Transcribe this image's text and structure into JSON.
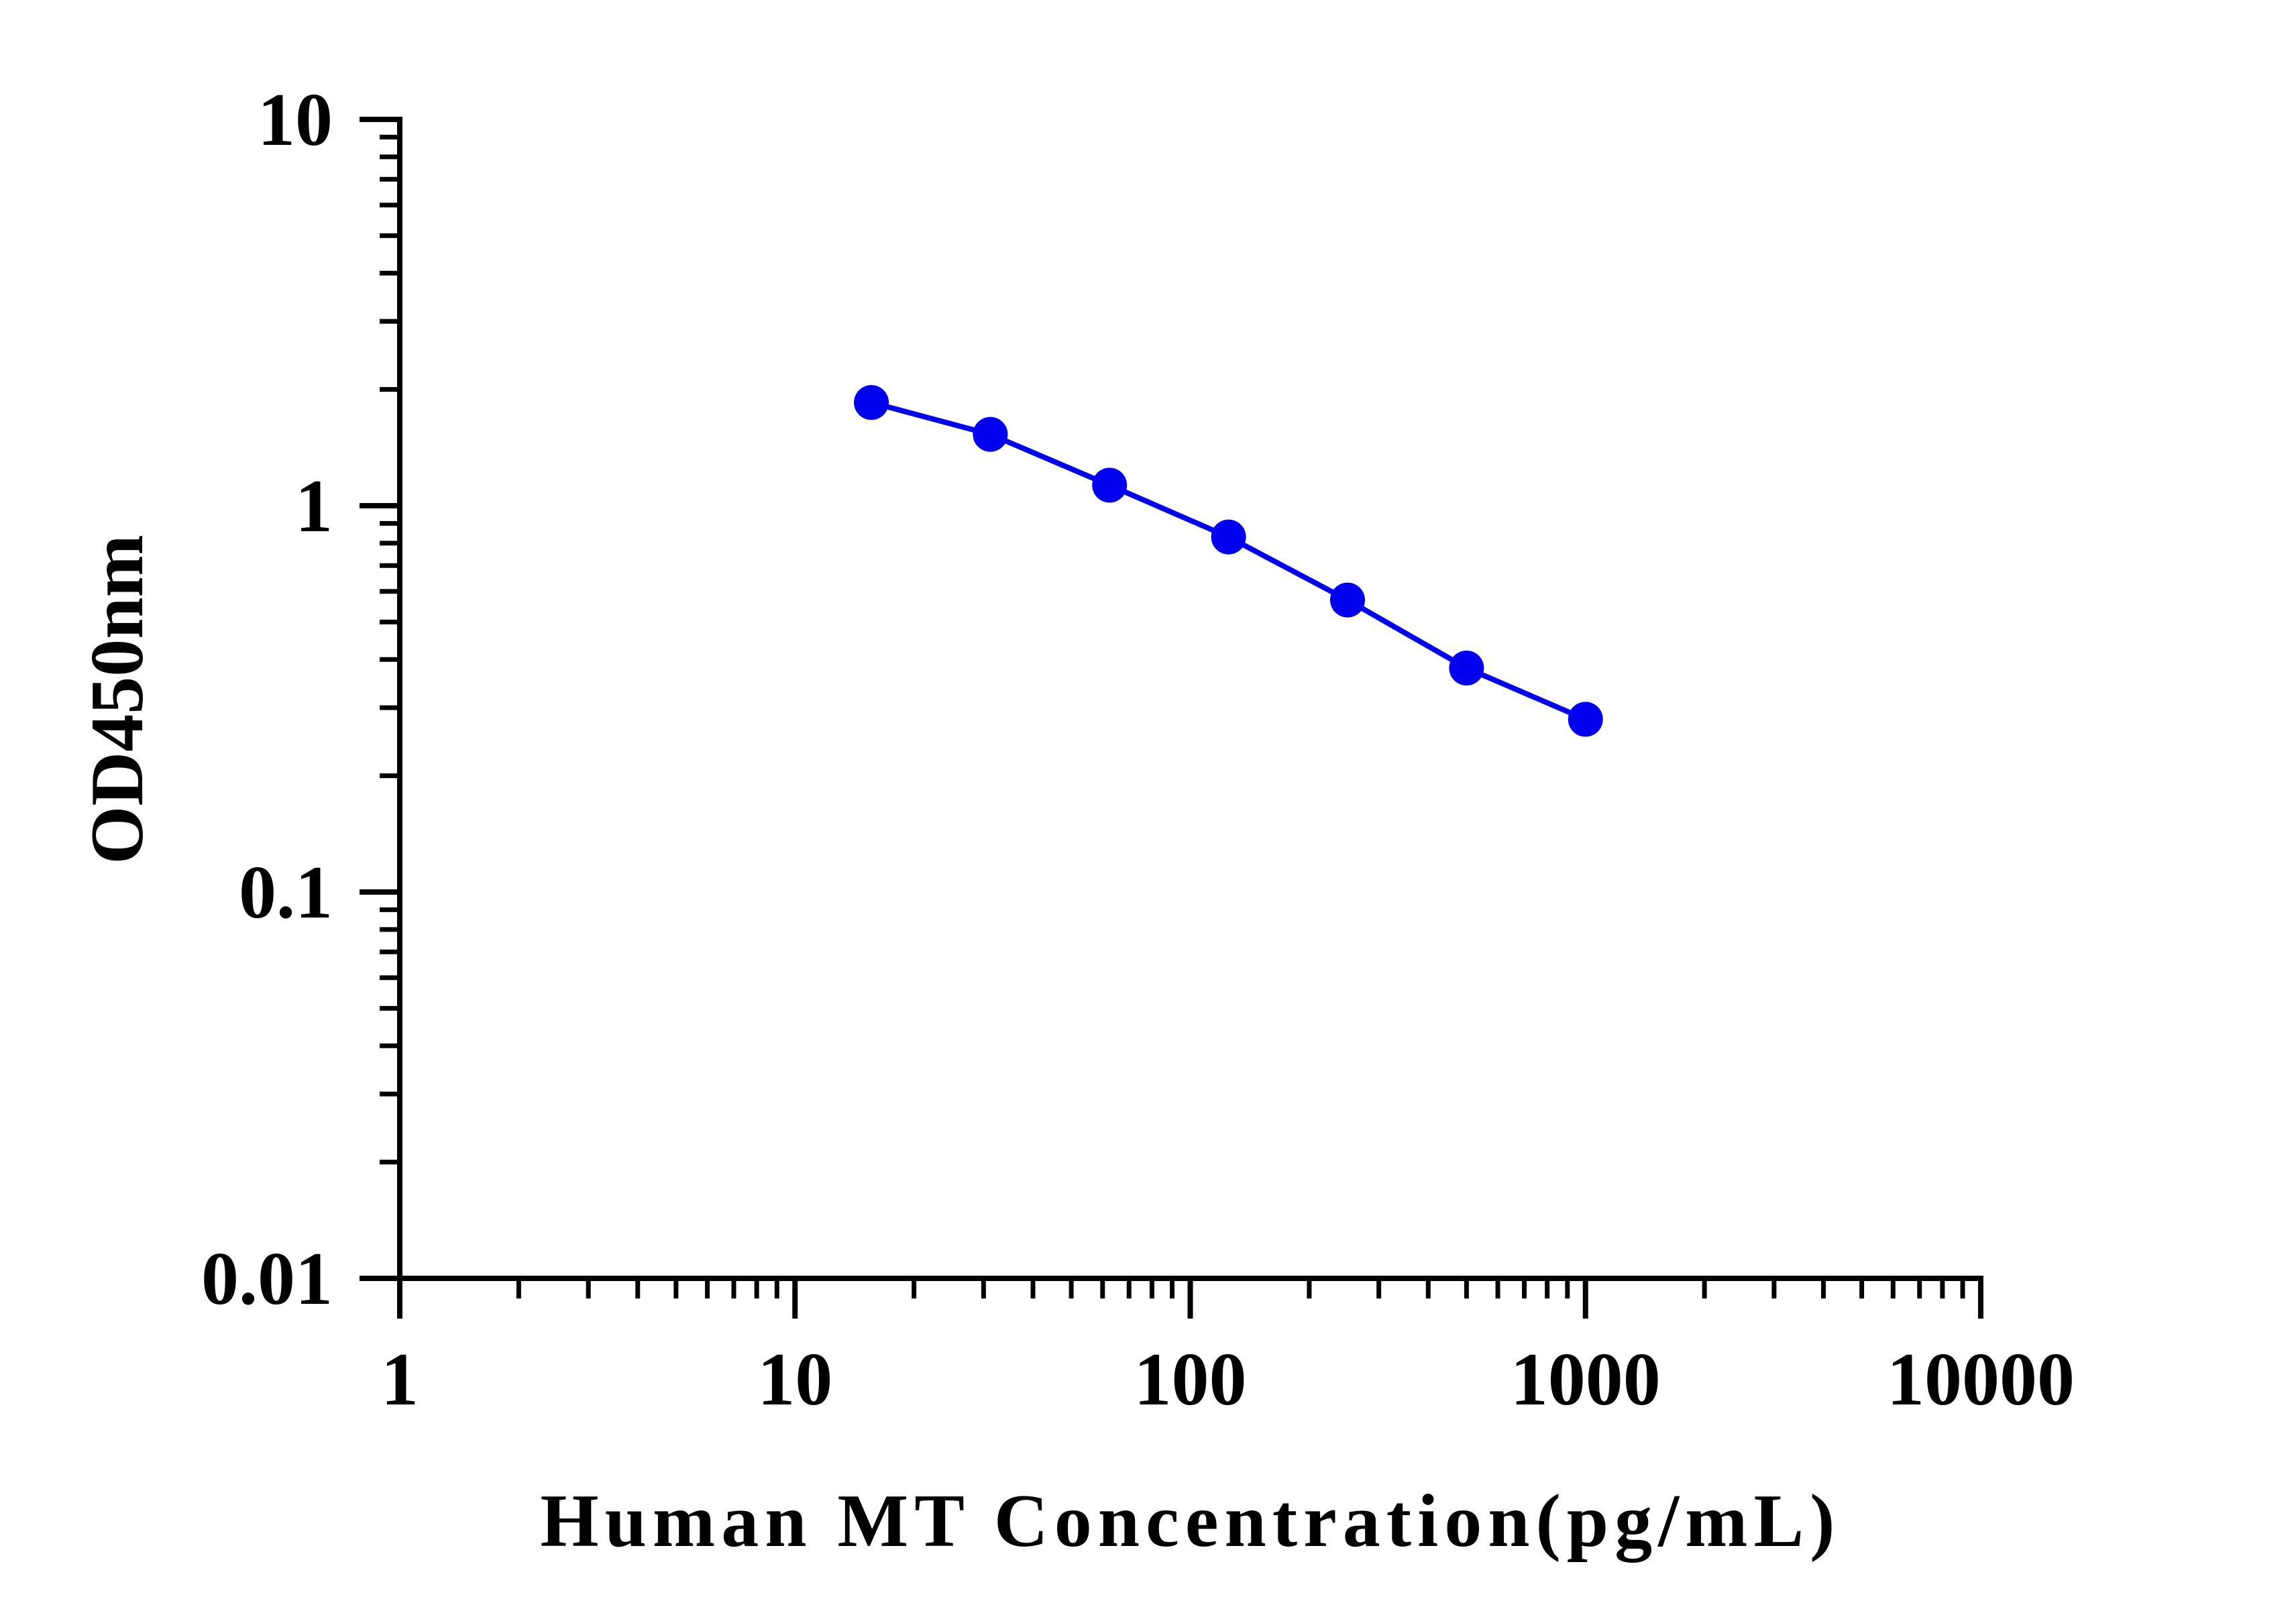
{
  "chart_data": {
    "type": "line",
    "title": "",
    "xlabel": "Human MT Concentration(pg/mL)",
    "ylabel": "OD450nm",
    "x_scale": "log",
    "y_scale": "log",
    "xlim": [
      1,
      10000
    ],
    "ylim": [
      0.01,
      10
    ],
    "x_ticks": [
      {
        "value": 1,
        "label": "1"
      },
      {
        "value": 10,
        "label": "10"
      },
      {
        "value": 100,
        "label": "100"
      },
      {
        "value": 1000,
        "label": "1000"
      },
      {
        "value": 10000,
        "label": "10000"
      }
    ],
    "y_ticks": [
      {
        "value": 0.01,
        "label": "0.01"
      },
      {
        "value": 0.1,
        "label": "0.1"
      },
      {
        "value": 1,
        "label": "1"
      },
      {
        "value": 10,
        "label": "10"
      }
    ],
    "grid": false,
    "legend": "none",
    "series": [
      {
        "color": "#0000ee",
        "x": [
          15.6,
          31.2,
          62.5,
          125,
          250,
          500,
          1000
        ],
        "y": [
          1.85,
          1.53,
          1.13,
          0.83,
          0.57,
          0.38,
          0.28
        ]
      }
    ]
  }
}
